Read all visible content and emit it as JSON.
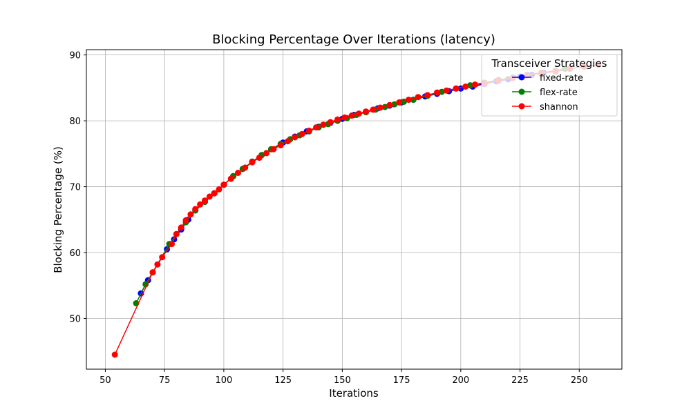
{
  "chart_data": {
    "type": "line",
    "title": "Blocking Percentage Over Iterations (latency)",
    "xlabel": "Iterations",
    "ylabel": "Blocking Percentage (%)",
    "xlim": [
      42,
      268
    ],
    "ylim": [
      42.3,
      90.8
    ],
    "xticks": [
      50,
      75,
      100,
      125,
      150,
      175,
      200,
      225,
      250
    ],
    "yticks": [
      50,
      60,
      70,
      80,
      90
    ],
    "grid": true,
    "legend": {
      "title": "Transceiver Strategies",
      "placement": "top-right"
    },
    "series": [
      {
        "name": "fixed-rate",
        "color": "#0000ff",
        "x": [
          65,
          68,
          76,
          79,
          82,
          85,
          88,
          92,
          96,
          100,
          104,
          108,
          112,
          116,
          120,
          125,
          130,
          135,
          140,
          145,
          150,
          155,
          160,
          165,
          170,
          175,
          180,
          185,
          190,
          195,
          200,
          205,
          210,
          215,
          220,
          225,
          230,
          235,
          240
        ],
        "y": [
          53.8,
          55.8,
          60.5,
          62.0,
          63.5,
          65.0,
          66.4,
          67.7,
          69.0,
          70.3,
          71.6,
          72.7,
          73.8,
          74.8,
          75.7,
          76.7,
          77.6,
          78.4,
          79.1,
          79.7,
          80.3,
          80.9,
          81.4,
          81.9,
          82.3,
          82.8,
          83.2,
          83.7,
          84.1,
          84.5,
          84.9,
          85.2,
          85.6,
          86.0,
          86.3,
          86.7,
          87.0,
          87.3,
          87.6
        ]
      },
      {
        "name": "flex-rate",
        "color": "#008000",
        "x": [
          63,
          67,
          70,
          77,
          80,
          84,
          88,
          92,
          96,
          100,
          104,
          108,
          112,
          116,
          120,
          124,
          128,
          132,
          136,
          140,
          144,
          148,
          152,
          156,
          160,
          164,
          168,
          172,
          176,
          180,
          186,
          192,
          198,
          204,
          210,
          216,
          222,
          228,
          234,
          240,
          244
        ],
        "y": [
          52.3,
          55.2,
          57.0,
          61.3,
          62.8,
          64.6,
          66.4,
          67.7,
          69.0,
          70.3,
          71.6,
          72.7,
          73.8,
          74.8,
          75.7,
          76.5,
          77.2,
          77.8,
          78.4,
          79.0,
          79.5,
          80.0,
          80.4,
          80.9,
          81.3,
          81.7,
          82.1,
          82.5,
          82.9,
          83.2,
          83.8,
          84.4,
          84.9,
          85.4,
          85.8,
          86.2,
          86.6,
          87.0,
          87.3,
          87.6,
          87.9
        ]
      },
      {
        "name": "shannon",
        "color": "#ff0000",
        "x": [
          54,
          70,
          72,
          74,
          78,
          80,
          82,
          84,
          86,
          88,
          90,
          92,
          94,
          96,
          98,
          100,
          103,
          106,
          109,
          112,
          115,
          118,
          121,
          124,
          127,
          130,
          133,
          136,
          139,
          142,
          145,
          148,
          151,
          154,
          157,
          160,
          163,
          166,
          170,
          174,
          178,
          182,
          186,
          190,
          194,
          198,
          202,
          206,
          210,
          216,
          222,
          228,
          234,
          240,
          246,
          252,
          258
        ],
        "y": [
          44.5,
          57.0,
          58.2,
          59.3,
          61.3,
          62.8,
          63.8,
          64.9,
          65.8,
          66.6,
          67.3,
          67.9,
          68.5,
          69.0,
          69.6,
          70.3,
          71.2,
          72.1,
          72.9,
          73.7,
          74.4,
          75.1,
          75.7,
          76.3,
          76.9,
          77.5,
          78.0,
          78.5,
          79.0,
          79.4,
          79.8,
          80.2,
          80.5,
          80.8,
          81.1,
          81.4,
          81.7,
          82.0,
          82.4,
          82.8,
          83.2,
          83.6,
          83.9,
          84.3,
          84.6,
          84.9,
          85.2,
          85.5,
          85.7,
          86.1,
          86.5,
          86.9,
          87.2,
          87.5,
          87.9,
          88.2,
          88.5
        ]
      }
    ]
  }
}
